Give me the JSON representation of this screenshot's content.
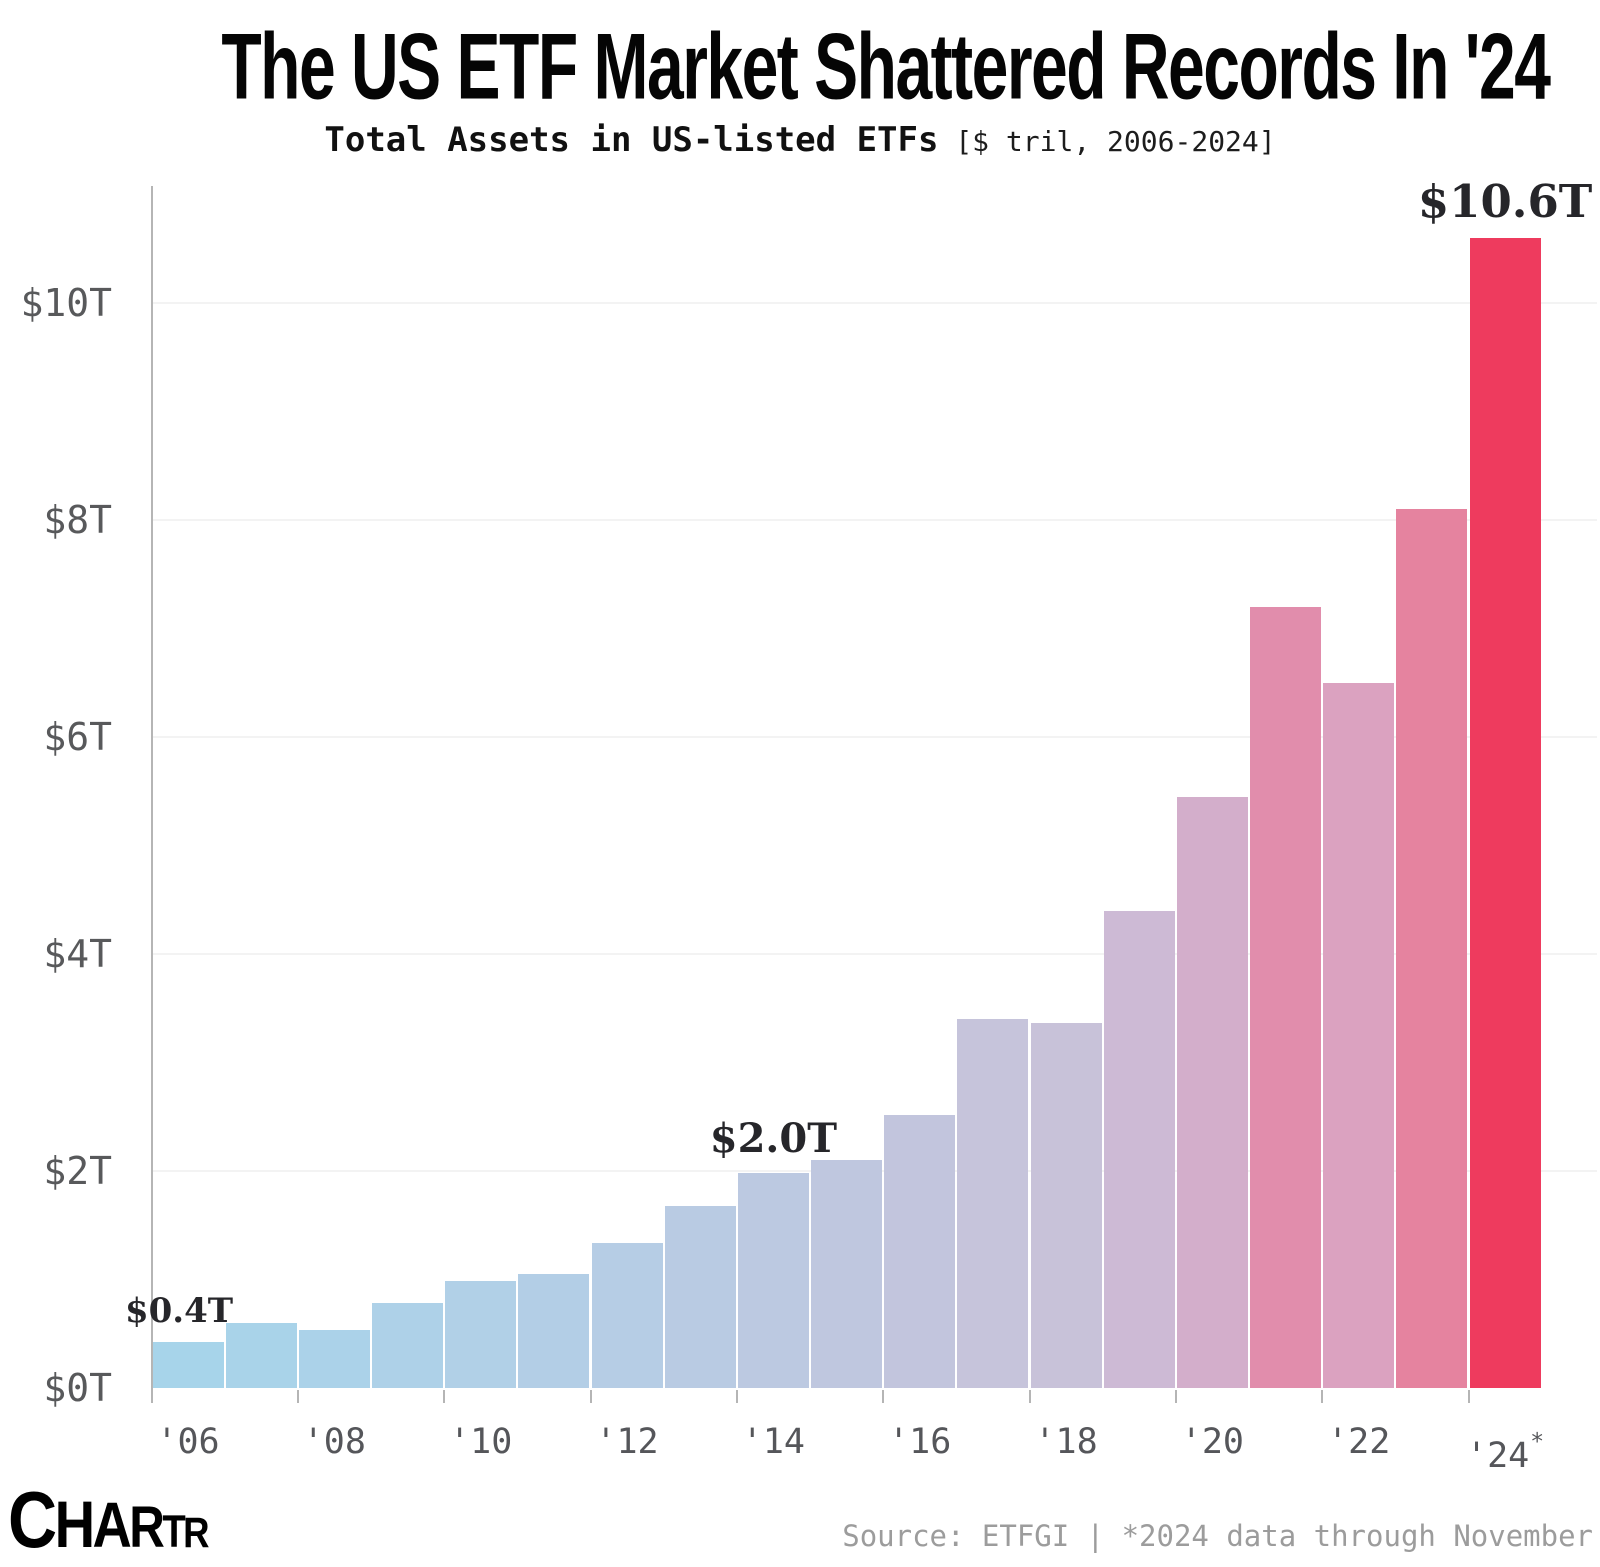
{
  "title": "The US ETF Market Shattered Records In '24",
  "subtitle": {
    "main": "Total Assets in US-listed ETFs",
    "unit": " [$ tril, 2006-2024]"
  },
  "chart_data": {
    "type": "bar",
    "title": "Total Assets in US-listed ETFs [$ tril, 2006-2024]",
    "xlabel": "",
    "ylabel": "$ trillions",
    "ylim": [
      0,
      10.6
    ],
    "grid": true,
    "legend": false,
    "categories": [
      2006,
      2007,
      2008,
      2009,
      2010,
      2011,
      2012,
      2013,
      2014,
      2015,
      2016,
      2017,
      2018,
      2019,
      2020,
      2021,
      2022,
      2023,
      2024
    ],
    "values": [
      0.42,
      0.6,
      0.53,
      0.78,
      0.99,
      1.05,
      1.34,
      1.68,
      1.98,
      2.1,
      2.52,
      3.4,
      3.36,
      4.4,
      5.45,
      7.2,
      6.5,
      8.1,
      10.6
    ],
    "bar_colors": [
      "#a7d4ea",
      "#a9d3e9",
      "#abd2e9",
      "#aed1e8",
      "#b1d0e7",
      "#b3cee6",
      "#b6cde5",
      "#b9cbe3",
      "#bcc9e1",
      "#bfc7df",
      "#c2c5dd",
      "#c6c4db",
      "#c8c2d9",
      "#cdbad5",
      "#d3aecb",
      "#e18dac",
      "#dba2c0",
      "#e5839f",
      "#ee3b5e"
    ],
    "y_ticks": [
      {
        "label": "$0T",
        "value": 0
      },
      {
        "label": "$2T",
        "value": 2
      },
      {
        "label": "$4T",
        "value": 4
      },
      {
        "label": "$6T",
        "value": 6
      },
      {
        "label": "$8T",
        "value": 8
      },
      {
        "label": "$10T",
        "value": 10
      }
    ],
    "x_ticks": [
      {
        "year": 2006,
        "label": "'06",
        "suffix": ""
      },
      {
        "year": 2008,
        "label": "'08",
        "suffix": ""
      },
      {
        "year": 2010,
        "label": "'10",
        "suffix": ""
      },
      {
        "year": 2012,
        "label": "'12",
        "suffix": ""
      },
      {
        "year": 2014,
        "label": "'14",
        "suffix": ""
      },
      {
        "year": 2016,
        "label": "'16",
        "suffix": ""
      },
      {
        "year": 2018,
        "label": "'18",
        "suffix": ""
      },
      {
        "year": 2020,
        "label": "'20",
        "suffix": ""
      },
      {
        "year": 2022,
        "label": "'22",
        "suffix": ""
      },
      {
        "year": 2024,
        "label": "'24",
        "suffix": "*"
      }
    ],
    "annotations": [
      {
        "year": 2006,
        "value": 0.42,
        "label": "$0.4T"
      },
      {
        "year": 2014,
        "value": 1.98,
        "label": "$2.0T"
      },
      {
        "year": 2024,
        "value": 10.6,
        "label": "$10.6T"
      }
    ]
  },
  "footer": {
    "source": "Source: ETFGI | *2024 data through November",
    "logo": "CHARTR"
  }
}
